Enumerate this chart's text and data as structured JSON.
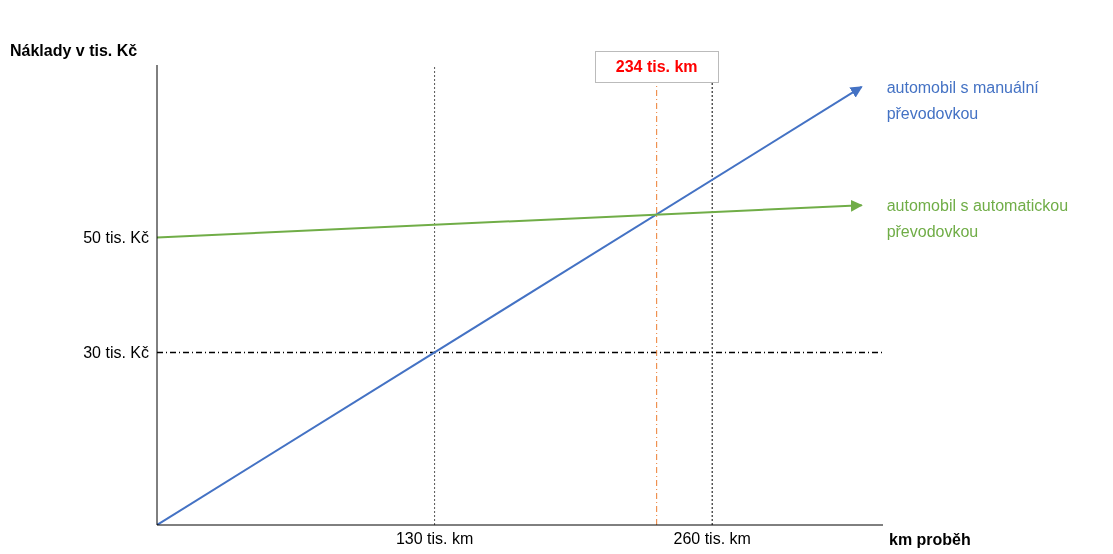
{
  "chart_data": {
    "type": "line",
    "xlabel": "km proběh",
    "ylabel": "Náklady v tis. Kč",
    "xlim": [
      0,
      340
    ],
    "ylim": [
      0,
      80
    ],
    "x": [
      0,
      330
    ],
    "xticks": [
      {
        "value": 130,
        "label": "130 tis. km"
      },
      {
        "value": 260,
        "label": "260 tis. km"
      }
    ],
    "yticks": [
      {
        "value": 30,
        "label": "30 tis. Kč"
      },
      {
        "value": 50,
        "label": "50 tis. Kč"
      }
    ],
    "series": [
      {
        "name": "automobil s manuální převodovkou",
        "color": "#4472c4",
        "values": [
          0,
          76.2
        ]
      },
      {
        "name": "automobil s automatickou převodovkou",
        "color": "#70ad47",
        "values": [
          50,
          55.6
        ]
      }
    ],
    "ref_lines": [
      {
        "axis": "y",
        "value": 30,
        "color": "#000000",
        "line_style": "dashed"
      },
      {
        "axis": "x",
        "value": 130,
        "color": "#555555",
        "line_style": "dotted"
      },
      {
        "axis": "x",
        "value": 260,
        "color": "#000000",
        "line_style": "dotted"
      },
      {
        "axis": "x",
        "value": 234,
        "label": "234 tis. km",
        "color": "#ed7d31",
        "line_style": "dashed"
      }
    ],
    "grid": false,
    "legend": "right"
  }
}
